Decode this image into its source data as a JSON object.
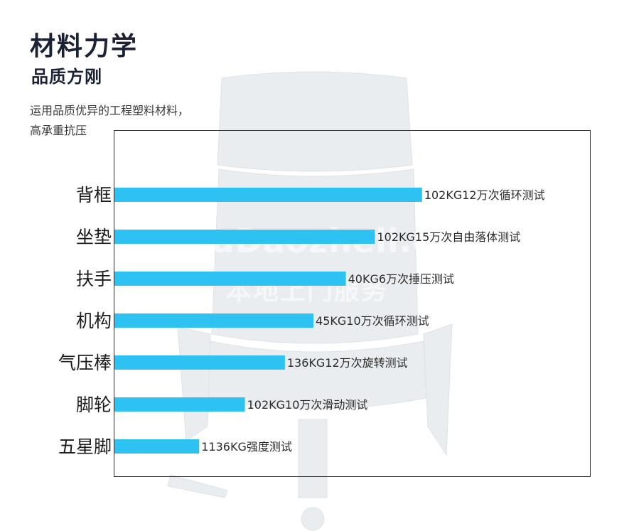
{
  "header": {
    "title": "材料力学",
    "subtitle": "品质方刚",
    "desc_line1": "运用品质优异的工程塑料材料，",
    "desc_line2": "高承重抗压"
  },
  "watermark": {
    "line1": "JiuDaozheli.co",
    "line2": "本地上门服务"
  },
  "colors": {
    "bar": "#2ec2f3",
    "title": "#1c2236",
    "frame": "#2a2a2a"
  },
  "chart_data": {
    "type": "bar",
    "orientation": "horizontal",
    "categories": [
      "背框",
      "坐垫",
      "扶手",
      "机构",
      "气压棒",
      "脚轮",
      "五星脚"
    ],
    "values": [
      102,
      102,
      40,
      45,
      136,
      102,
      1136
    ],
    "data_labels": [
      "102KG12万次循环测试",
      "102KG15万次自由落体测试",
      "40KG6万次捶压测试",
      "45KG10万次循环测试",
      "136KG12万次旋转测试",
      "102KG10万次滑动测试",
      "1136KG强度测试"
    ],
    "bar_extent": [
      0.646,
      0.547,
      0.486,
      0.418,
      0.358,
      0.274,
      0.178
    ],
    "grid": false,
    "legend": "none"
  }
}
